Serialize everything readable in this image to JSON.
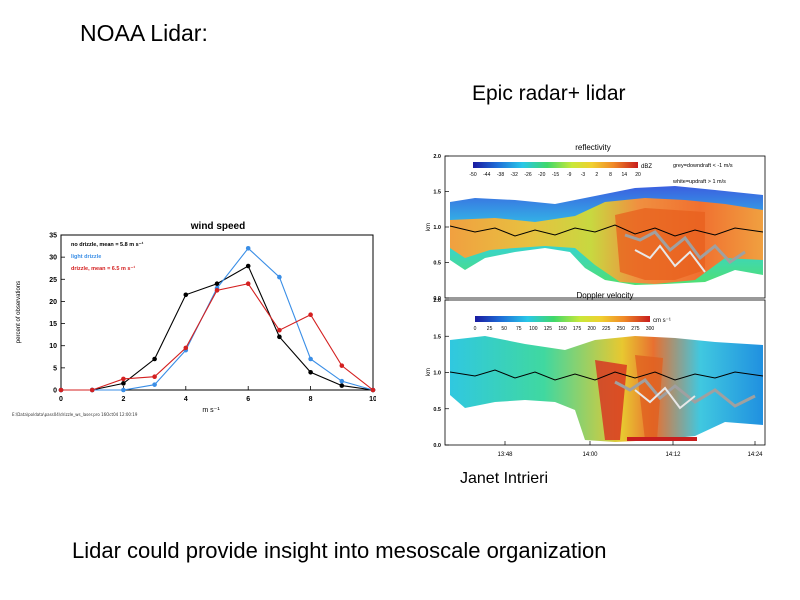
{
  "slide": {
    "title": "NOAA Lidar:",
    "right_title": "Epic radar+ lidar",
    "author": "Janet Intrieri",
    "bottom_text": "Lidar could provide insight into mesoscale organization",
    "file_path": "E:\\Data\\poldata\\pass04\\drizzle_ws_laser.pro 16Oct04 12:00:19"
  },
  "chart_data": [
    {
      "type": "line",
      "title": "wind speed",
      "xlabel": "m s⁻¹",
      "ylabel": "percent of observations",
      "xlim": [
        0,
        10
      ],
      "ylim": [
        0,
        35
      ],
      "xticks": [
        0,
        2,
        4,
        6,
        8,
        10
      ],
      "yticks": [
        0,
        5,
        10,
        15,
        20,
        25,
        30,
        35
      ],
      "legend_position": "top-left",
      "x": [
        0,
        1,
        2,
        3,
        4,
        5,
        6,
        7,
        8,
        9,
        10
      ],
      "series": [
        {
          "name": "no drizzle, mean = 5.8 m s⁻¹",
          "color": "#000000",
          "values": [
            0,
            0,
            1.5,
            7,
            21.5,
            24,
            28,
            12,
            4,
            1,
            0
          ]
        },
        {
          "name": "light drizzle",
          "color": "#3a8ee6",
          "values": [
            0,
            0,
            0,
            1.2,
            9,
            23,
            32,
            25.5,
            7,
            2,
            0
          ]
        },
        {
          "name": "drizzle, mean = 6.5 m s⁻¹",
          "color": "#d42020",
          "values": [
            0,
            0,
            2.5,
            3,
            9.5,
            22.5,
            24,
            13.5,
            17,
            5.5,
            0
          ]
        }
      ]
    },
    {
      "type": "heatmap",
      "title": "reflectivity",
      "ylabel": "km",
      "ylim": [
        0,
        2.0
      ],
      "yticks": [
        "0.0",
        "0.5",
        "1.0",
        "1.5",
        "2.0"
      ],
      "colorbar_unit": "dBZ",
      "colorbar_ticks": [
        "-50",
        "-44",
        "-38",
        "-32",
        "-26",
        "-20",
        "-15",
        "-9",
        "-3",
        "2",
        "8",
        "14",
        "20"
      ],
      "annotations": [
        "grey=downdraft < -1 m/s",
        "white=updraft > 1 m/s"
      ]
    },
    {
      "type": "heatmap",
      "title": "Doppler velocity",
      "ylabel": "km",
      "ylim": [
        0,
        2.0
      ],
      "yticks": [
        "0.0",
        "0.5",
        "1.0",
        "1.5",
        "2.0"
      ],
      "colorbar_unit": "cm s⁻¹",
      "colorbar_ticks": [
        "0",
        "25",
        "50",
        "75",
        "100",
        "125",
        "150",
        "175",
        "200",
        "225",
        "250",
        "275",
        "300"
      ],
      "xticks": [
        "13:48",
        "14:00",
        "14:12",
        "14:24"
      ]
    }
  ],
  "colors": {
    "background": "#ffffff",
    "text": "#000000"
  }
}
